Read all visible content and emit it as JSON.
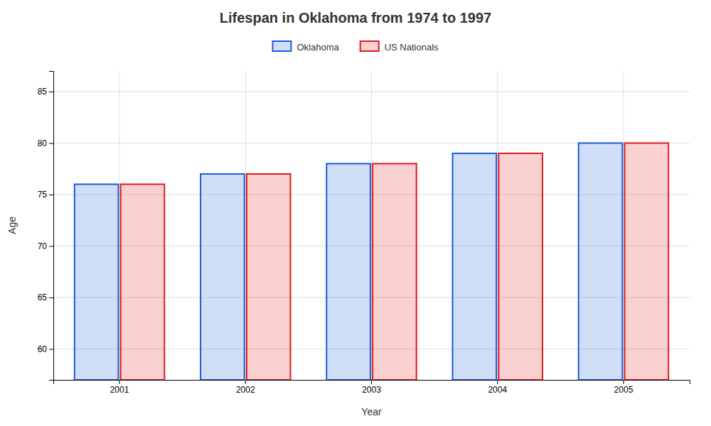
{
  "chart_data": {
    "type": "bar",
    "title": "Lifespan in Oklahoma from 1974 to 1997",
    "xlabel": "Year",
    "ylabel": "Age",
    "categories": [
      "2001",
      "2002",
      "2003",
      "2004",
      "2005"
    ],
    "series": [
      {
        "name": "Oklahoma",
        "color": "#1a5bdb",
        "values": [
          76,
          77,
          78,
          79,
          80
        ]
      },
      {
        "name": "US Nationals",
        "color": "#e01a1a",
        "values": [
          76,
          77,
          78,
          79,
          80
        ]
      }
    ],
    "ylim": [
      57,
      87
    ],
    "yticks": [
      60,
      65,
      70,
      75,
      80,
      85
    ],
    "grid": true,
    "legend": "top"
  }
}
